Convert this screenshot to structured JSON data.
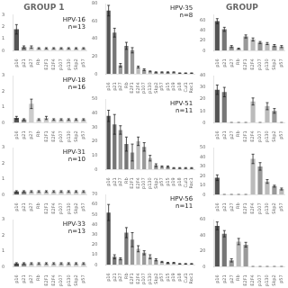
{
  "chart_data": [
    {
      "type": "bar",
      "title": "GROUP 1",
      "annotations": [
        "HPV-16",
        "n=13"
      ],
      "categories": [
        "p16",
        "p21",
        "p27",
        "Rb",
        "E2F1",
        "E2F4",
        "p107",
        "p130",
        "Skp2",
        "p57"
      ],
      "values": [
        1.8,
        0.3,
        0.3,
        0.2,
        0.2,
        0.2,
        0.2,
        0.2,
        0.2,
        0.2
      ],
      "errors": [
        0.4,
        0.1,
        0.1,
        0.05,
        0.05,
        0.05,
        0.05,
        0.05,
        0.05,
        0.05
      ],
      "colors": [
        "#555555",
        "#888888",
        "#cccccc",
        "#cccccc",
        "#cccccc",
        "#cccccc",
        "#cccccc",
        "#cccccc",
        "#cccccc",
        "#cccccc"
      ],
      "ylim": [
        0,
        3
      ],
      "yticks": [
        0,
        1,
        2,
        3
      ],
      "grid": false
    },
    {
      "type": "bar",
      "annotations": [
        "HPV-18",
        "n=16"
      ],
      "categories": [
        "p16",
        "p21",
        "p27",
        "Rb",
        "E2F1",
        "E2F4",
        "p107",
        "p130",
        "Skp2",
        "p57"
      ],
      "values": [
        0.3,
        0.2,
        1.2,
        0.2,
        0.3,
        0.2,
        0.2,
        0.2,
        0.2,
        0.2
      ],
      "errors": [
        0.1,
        0.05,
        0.3,
        0.05,
        0.1,
        0.05,
        0.05,
        0.05,
        0.05,
        0.05
      ],
      "colors": [
        "#555555",
        "#888888",
        "#cccccc",
        "#cccccc",
        "#cccccc",
        "#cccccc",
        "#cccccc",
        "#cccccc",
        "#cccccc",
        "#cccccc"
      ],
      "ylim": [
        0,
        3
      ],
      "yticks": [
        0,
        1,
        2,
        3
      ],
      "grid": false
    },
    {
      "type": "bar",
      "annotations": [
        "HPV-31",
        "n=10"
      ],
      "categories": [
        "p16",
        "p21",
        "p27",
        "Rb",
        "E2F1",
        "E2F4",
        "p107",
        "p130",
        "Skp2",
        "p57"
      ],
      "values": [
        0.2,
        0.2,
        0.2,
        0.2,
        0.2,
        0.2,
        0.2,
        0.2,
        0.2,
        0.2
      ],
      "errors": [
        0.05,
        0.05,
        0.05,
        0.05,
        0.05,
        0.05,
        0.05,
        0.05,
        0.05,
        0.05
      ],
      "colors": [
        "#555555",
        "#888888",
        "#cccccc",
        "#cccccc",
        "#cccccc",
        "#cccccc",
        "#cccccc",
        "#cccccc",
        "#cccccc",
        "#cccccc"
      ],
      "ylim": [
        0,
        3
      ],
      "yticks": [
        0,
        1,
        2,
        3
      ],
      "grid": false
    },
    {
      "type": "bar",
      "annotations": [
        "HPV-33",
        "n=13"
      ],
      "categories": [
        "p16",
        "p21",
        "p27",
        "Rb",
        "E2F1",
        "E2F4",
        "p107",
        "p130",
        "Skp2",
        "p57"
      ],
      "values": [
        0.2,
        0.2,
        0.2,
        0.2,
        0.2,
        0.2,
        0.2,
        0.2,
        0.2,
        0.2
      ],
      "errors": [
        0.05,
        0.05,
        0.05,
        0.05,
        0.05,
        0.05,
        0.05,
        0.05,
        0.05,
        0.05
      ],
      "colors": [
        "#555555",
        "#888888",
        "#cccccc",
        "#cccccc",
        "#cccccc",
        "#cccccc",
        "#cccccc",
        "#cccccc",
        "#cccccc",
        "#cccccc"
      ],
      "ylim": [
        0,
        3
      ],
      "yticks": [
        0,
        1,
        2,
        3
      ],
      "grid": false
    },
    {
      "type": "bar",
      "annotations": [
        "HPV-35",
        "n=8"
      ],
      "categories": [
        "p16",
        "p21",
        "p27",
        "Rb",
        "E2F1",
        "E2F4",
        "p107",
        "p130",
        "Skp2",
        "p57",
        "p15",
        "p19",
        "p18",
        "Cul1",
        "Roc1"
      ],
      "values": [
        72,
        47,
        10,
        32,
        27,
        8,
        5,
        3,
        2,
        2,
        2,
        2,
        1,
        1,
        1
      ],
      "errors": [
        6,
        5,
        2,
        4,
        3,
        1,
        1,
        0.5,
        0.5,
        0.5,
        0.5,
        0.5,
        0.3,
        0.3,
        0.3
      ],
      "colors": [
        "#555",
        "#777",
        "#999",
        "#777",
        "#999",
        "#bbb",
        "#999",
        "#bbb",
        "#999",
        "#bbb",
        "#999",
        "#bbb",
        "#bbb",
        "#bbb",
        "#bbb"
      ],
      "ylim": [
        0,
        80
      ],
      "yticks": [
        0,
        20,
        40,
        60,
        80
      ],
      "grid": false
    },
    {
      "type": "bar",
      "annotations": [
        "HPV-51",
        "n=11"
      ],
      "categories": [
        "p16",
        "p21",
        "p27",
        "Rb",
        "E2F1",
        "E2F4",
        "p107",
        "p130",
        "Skp2",
        "p57",
        "p15",
        "p19",
        "p18",
        "Cul1",
        "Roc1"
      ],
      "values": [
        38,
        32,
        28,
        18,
        12,
        20,
        16,
        8,
        3,
        2,
        2,
        1,
        1,
        1,
        1
      ],
      "errors": [
        4,
        7,
        3,
        5,
        6,
        3,
        3,
        2,
        1,
        0.5,
        0.5,
        0.3,
        0.3,
        0.3,
        0.3
      ],
      "colors": [
        "#555",
        "#777",
        "#999",
        "#777",
        "#999",
        "#bbb",
        "#999",
        "#bbb",
        "#999",
        "#bbb",
        "#999",
        "#bbb",
        "#bbb",
        "#bbb",
        "#bbb"
      ],
      "ylim": [
        0,
        50
      ],
      "yticks": [
        0,
        10,
        20,
        30,
        40,
        50
      ],
      "grid": false
    },
    {
      "type": "bar",
      "annotations": [
        "HPV-56",
        "n=11"
      ],
      "categories": [
        "p16",
        "p21",
        "p27",
        "Rb",
        "E2F1",
        "E2F4",
        "p107",
        "p130",
        "Skp2",
        "p57",
        "p15",
        "p19",
        "p18",
        "Cul1",
        "Roc1"
      ],
      "values": [
        52,
        8,
        6,
        32,
        25,
        16,
        12,
        8,
        5,
        3,
        2,
        2,
        1,
        1,
        1
      ],
      "errors": [
        8,
        2,
        1,
        5,
        7,
        3,
        2,
        2,
        1,
        0.5,
        0.5,
        0.5,
        0.3,
        0.3,
        0.3
      ],
      "colors": [
        "#555",
        "#777",
        "#999",
        "#777",
        "#999",
        "#bbb",
        "#999",
        "#bbb",
        "#999",
        "#bbb",
        "#999",
        "#bbb",
        "#bbb",
        "#bbb",
        "#bbb"
      ],
      "ylim": [
        0,
        70
      ],
      "yticks": [
        0,
        10,
        20,
        30,
        40,
        50,
        60,
        70
      ],
      "grid": false
    },
    {
      "type": "bar",
      "title": "GROUP",
      "categories": [
        "p16",
        "p21",
        "p27",
        "Rb",
        "E2F1",
        "E2F4",
        "p107",
        "p130",
        "Skp2",
        "p57"
      ],
      "values": [
        58,
        42,
        8,
        4,
        28,
        22,
        16,
        14,
        10,
        8
      ],
      "errors": [
        5,
        4,
        2,
        1,
        3,
        3,
        2,
        2,
        2,
        2
      ],
      "colors": [
        "#555",
        "#777",
        "#999",
        "#bbb",
        "#999",
        "#bbb",
        "#999",
        "#bbb",
        "#999",
        "#bbb"
      ],
      "ylim": [
        0,
        70
      ],
      "yticks": [
        0,
        20,
        40,
        60
      ],
      "grid": false
    },
    {
      "type": "bar",
      "categories": [
        "p16",
        "p21",
        "p27",
        "Rb",
        "E2F1",
        "E2F4",
        "p107",
        "p130",
        "Skp2",
        "p57"
      ],
      "values": [
        28,
        26,
        0,
        0,
        0,
        18,
        0,
        14,
        10,
        0
      ],
      "errors": [
        4,
        4,
        0,
        0,
        0,
        3,
        0,
        3,
        2,
        0
      ],
      "colors": [
        "#555",
        "#777",
        "#999",
        "#bbb",
        "#999",
        "#bbb",
        "#999",
        "#bbb",
        "#999",
        "#bbb"
      ],
      "ylim": [
        0,
        40
      ],
      "yticks": [
        0,
        10,
        20,
        30,
        40
      ],
      "grid": false
    },
    {
      "type": "bar",
      "categories": [
        "p16",
        "p21",
        "p27",
        "Rb",
        "E2F1",
        "E2F4",
        "p107",
        "p130",
        "Skp2",
        "p57"
      ],
      "values": [
        18,
        0,
        0,
        0,
        0,
        38,
        30,
        14,
        9,
        6
      ],
      "errors": [
        3,
        0,
        0,
        0,
        0,
        5,
        4,
        2,
        1,
        1
      ],
      "colors": [
        "#555",
        "#777",
        "#999",
        "#bbb",
        "#999",
        "#bbb",
        "#999",
        "#bbb",
        "#999",
        "#bbb"
      ],
      "ylim": [
        0,
        50
      ],
      "yticks": [
        0,
        10,
        20,
        30,
        40,
        50
      ],
      "grid": false
    },
    {
      "type": "bar",
      "categories": [
        "p16",
        "p21",
        "p27",
        "Rb",
        "E2F1",
        "E2F4",
        "p107",
        "p130",
        "Skp2",
        "p57"
      ],
      "values": [
        52,
        42,
        8,
        32,
        28,
        0,
        0,
        0,
        0,
        0
      ],
      "errors": [
        5,
        4,
        2,
        4,
        3,
        0,
        0,
        0,
        0,
        0
      ],
      "colors": [
        "#555",
        "#777",
        "#999",
        "#bbb",
        "#999",
        "#bbb",
        "#999",
        "#bbb",
        "#999",
        "#bbb"
      ],
      "ylim": [
        0,
        60
      ],
      "yticks": [
        0,
        20,
        40,
        60
      ],
      "grid": false
    }
  ]
}
